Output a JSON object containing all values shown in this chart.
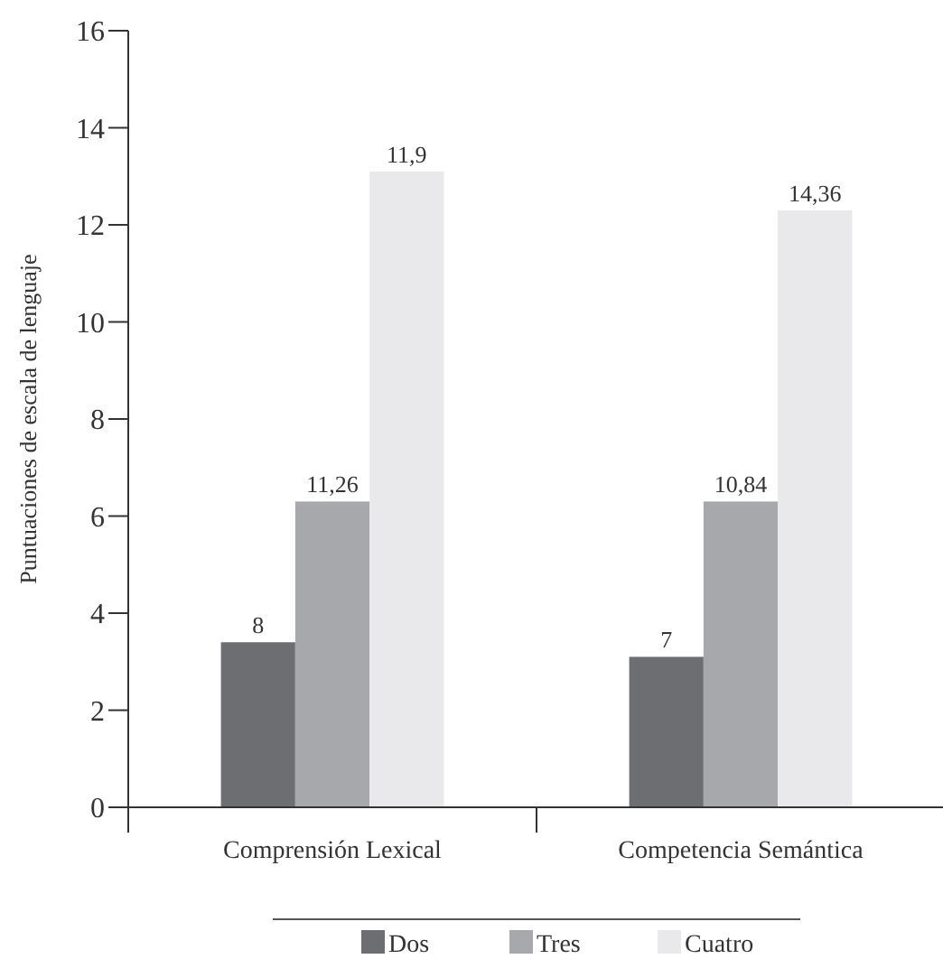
{
  "chart_data": {
    "type": "bar",
    "ylabel": "Puntuaciones de escala de lenguaje",
    "categories": [
      "Comprensión Lexical",
      "Competencia Semántica"
    ],
    "series": [
      {
        "name": "Dos",
        "color": "#6d6e72",
        "values": [
          3.4,
          3.1
        ]
      },
      {
        "name": "Tres",
        "color": "#a7a8ab",
        "values": [
          6.3,
          6.3
        ]
      },
      {
        "name": "Cuatro",
        "color": "#e9e9eb",
        "values": [
          13.1,
          12.3
        ]
      }
    ],
    "annotations": [
      "8",
      "11,26",
      "11,9",
      "7",
      "10,84",
      "14,36"
    ],
    "ylim": [
      0,
      16
    ],
    "yticks": [
      0,
      2,
      4,
      6,
      8,
      10,
      12,
      14,
      16
    ],
    "grid": false,
    "legend": "bottom"
  }
}
